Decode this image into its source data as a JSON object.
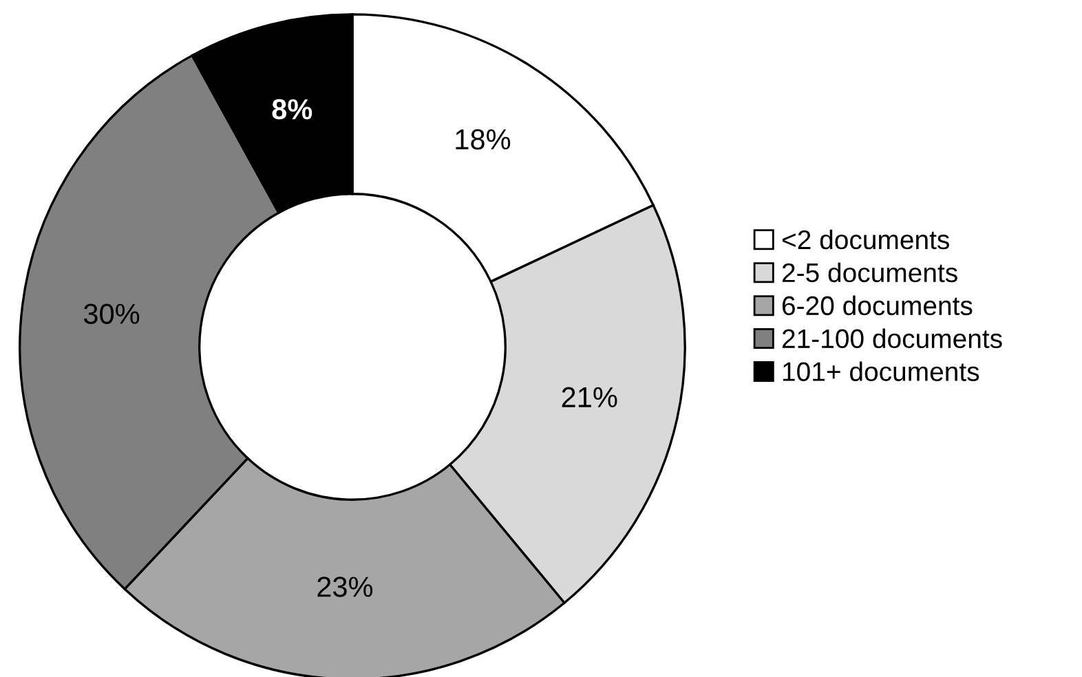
{
  "chart_data": {
    "type": "donut",
    "categories": [
      "<2 documents",
      "2-5 documents",
      "6-20 documents",
      "21-100 documents",
      "101+ documents"
    ],
    "values": [
      18,
      21,
      23,
      30,
      8
    ],
    "colors": [
      "#ffffff",
      "#d9d9d9",
      "#a6a6a6",
      "#808080",
      "#000000"
    ],
    "value_labels": [
      "18%",
      "21%",
      "23%",
      "30%",
      "8%"
    ],
    "legend": "right"
  }
}
